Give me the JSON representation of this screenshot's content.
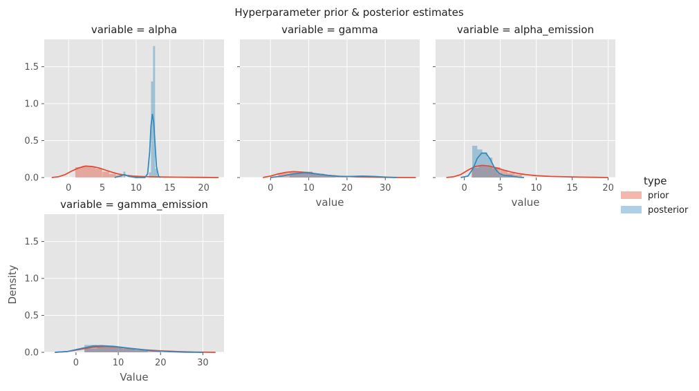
{
  "chart_data": {
    "type": "area",
    "title": "Hyperparameter prior & posterior estimates",
    "ylabel": "Density",
    "ylim": [
      0,
      1.87
    ],
    "yticks": [
      "0.0",
      "0.5",
      "1.0",
      "1.5"
    ],
    "grid": true,
    "legend": {
      "title": "type",
      "placement": "right",
      "entries": [
        {
          "name": "prior",
          "color": "#E24A33"
        },
        {
          "name": "posterior",
          "color": "#348ABD"
        }
      ]
    },
    "colors": {
      "prior": "#E24A33",
      "posterior": "#348ABD",
      "panel_bg": "#E5E5E5"
    },
    "panels": [
      {
        "title": "variable = alpha",
        "xlabel": "",
        "xlim": [
          -3.6,
          23
        ],
        "xticks": [
          0,
          5,
          10,
          15,
          20
        ],
        "histograms": [
          {
            "series": "prior",
            "bins": [
              [
                1,
                2,
                0.14
              ],
              [
                2,
                3,
                0.16
              ],
              [
                3,
                4,
                0.15
              ],
              [
                4,
                5,
                0.12
              ],
              [
                5,
                6,
                0.08
              ],
              [
                6,
                7,
                0.05
              ],
              [
                7,
                8,
                0.03
              ]
            ]
          },
          {
            "series": "posterior",
            "bins": [
              [
                8.1,
                8.4,
                0.08
              ],
              [
                11.9,
                12.2,
                0.07
              ],
              [
                12.2,
                12.5,
                1.3
              ],
              [
                12.5,
                12.8,
                1.78
              ],
              [
                12.8,
                13.1,
                0.12
              ]
            ]
          }
        ],
        "kde": [
          {
            "series": "prior",
            "points": [
              [
                -2.5,
                0.0
              ],
              [
                -1.5,
                0.01
              ],
              [
                -0.5,
                0.04
              ],
              [
                0.5,
                0.09
              ],
              [
                1.5,
                0.13
              ],
              [
                2.5,
                0.155
              ],
              [
                3.5,
                0.15
              ],
              [
                4.5,
                0.13
              ],
              [
                5.5,
                0.1
              ],
              [
                6.5,
                0.07
              ],
              [
                7.5,
                0.045
              ],
              [
                8.5,
                0.03
              ],
              [
                9.5,
                0.02
              ],
              [
                10.5,
                0.015
              ],
              [
                12,
                0.01
              ],
              [
                14,
                0.007
              ],
              [
                16,
                0.005
              ],
              [
                18,
                0.003
              ],
              [
                20,
                0.002
              ],
              [
                22.2,
                0.0
              ]
            ]
          },
          {
            "series": "posterior",
            "points": [
              [
                6.8,
                0.0
              ],
              [
                7.6,
                0.02
              ],
              [
                8.3,
                0.04
              ],
              [
                8.9,
                0.015
              ],
              [
                10,
                0.0
              ],
              [
                11.3,
                0.0
              ],
              [
                11.7,
                0.05
              ],
              [
                12.0,
                0.35
              ],
              [
                12.2,
                0.7
              ],
              [
                12.4,
                0.86
              ],
              [
                12.6,
                0.75
              ],
              [
                12.8,
                0.45
              ],
              [
                13.0,
                0.15
              ],
              [
                13.3,
                0.02
              ],
              [
                13.6,
                0.0
              ]
            ]
          }
        ]
      },
      {
        "title": "variable = gamma",
        "xlabel": "value",
        "xlim": [
          -8,
          39
        ],
        "xticks": [
          0,
          10,
          20,
          30
        ],
        "histograms": [
          {
            "series": "prior",
            "bins": [
              [
                2,
                5,
                0.06
              ],
              [
                5,
                8,
                0.08
              ],
              [
                8,
                11,
                0.075
              ],
              [
                11,
                14,
                0.05
              ],
              [
                14,
                17,
                0.03
              ],
              [
                17,
                20,
                0.02
              ]
            ]
          },
          {
            "series": "posterior",
            "bins": [
              [
                5,
                8,
                0.05
              ],
              [
                8,
                11,
                0.08
              ],
              [
                11,
                14,
                0.05
              ],
              [
                14,
                17,
                0.03
              ],
              [
                22,
                25,
                0.02
              ],
              [
                25,
                28,
                0.02
              ]
            ]
          }
        ],
        "kde": [
          {
            "series": "prior",
            "points": [
              [
                -2,
                0.0
              ],
              [
                0,
                0.02
              ],
              [
                2,
                0.05
              ],
              [
                4,
                0.07
              ],
              [
                6,
                0.08
              ],
              [
                8,
                0.075
              ],
              [
                10,
                0.065
              ],
              [
                12,
                0.05
              ],
              [
                15,
                0.03
              ],
              [
                18,
                0.018
              ],
              [
                22,
                0.01
              ],
              [
                26,
                0.006
              ],
              [
                30,
                0.003
              ],
              [
                34,
                0.001
              ],
              [
                38,
                0.0
              ]
            ]
          },
          {
            "series": "posterior",
            "points": [
              [
                0,
                0.0
              ],
              [
                3,
                0.02
              ],
              [
                6,
                0.05
              ],
              [
                9,
                0.065
              ],
              [
                12,
                0.05
              ],
              [
                15,
                0.03
              ],
              [
                18,
                0.015
              ],
              [
                21,
                0.015
              ],
              [
                24,
                0.02
              ],
              [
                27,
                0.015
              ],
              [
                31,
                0.004
              ],
              [
                33,
                0.0
              ]
            ]
          }
        ]
      },
      {
        "title": "variable = alpha_emission",
        "xlabel": "value",
        "xlim": [
          -4,
          21
        ],
        "xticks": [
          0,
          5,
          10,
          15,
          20
        ],
        "histograms": [
          {
            "series": "prior",
            "bins": [
              [
                1,
                2,
                0.13
              ],
              [
                2,
                3,
                0.16
              ],
              [
                3,
                4,
                0.15
              ],
              [
                4,
                5,
                0.14
              ],
              [
                5,
                6,
                0.1
              ],
              [
                6,
                7,
                0.06
              ],
              [
                7,
                8,
                0.04
              ]
            ]
          },
          {
            "series": "posterior",
            "bins": [
              [
                1.1,
                1.8,
                0.43
              ],
              [
                1.8,
                2.5,
                0.38
              ],
              [
                2.5,
                3.2,
                0.34
              ],
              [
                3.2,
                3.9,
                0.27
              ],
              [
                3.9,
                4.6,
                0.12
              ],
              [
                4.6,
                5.3,
                0.05
              ],
              [
                5.3,
                6.0,
                0.04
              ],
              [
                6.0,
                6.7,
                0.04
              ],
              [
                6.7,
                7.4,
                0.02
              ]
            ]
          }
        ],
        "kde": [
          {
            "series": "prior",
            "points": [
              [
                -2.5,
                0.0
              ],
              [
                -1.5,
                0.01
              ],
              [
                -0.5,
                0.04
              ],
              [
                0.5,
                0.1
              ],
              [
                1.5,
                0.15
              ],
              [
                2.5,
                0.165
              ],
              [
                3.5,
                0.155
              ],
              [
                4.5,
                0.13
              ],
              [
                5.5,
                0.1
              ],
              [
                6.5,
                0.075
              ],
              [
                7.5,
                0.055
              ],
              [
                8.5,
                0.04
              ],
              [
                10,
                0.025
              ],
              [
                12,
                0.015
              ],
              [
                14,
                0.01
              ],
              [
                16,
                0.006
              ],
              [
                18,
                0.003
              ],
              [
                20,
                0.0
              ]
            ]
          },
          {
            "series": "posterior",
            "points": [
              [
                -0.5,
                0.0
              ],
              [
                0.5,
                0.02
              ],
              [
                1.2,
                0.12
              ],
              [
                1.8,
                0.26
              ],
              [
                2.4,
                0.33
              ],
              [
                3.0,
                0.33
              ],
              [
                3.6,
                0.25
              ],
              [
                4.2,
                0.13
              ],
              [
                4.8,
                0.06
              ],
              [
                5.5,
                0.03
              ],
              [
                6.5,
                0.02
              ],
              [
                7.5,
                0.005
              ],
              [
                8.3,
                0.0
              ]
            ]
          }
        ]
      },
      {
        "title": "variable = gamma_emission",
        "xlabel": "Value",
        "xlim": [
          -7.5,
          35
        ],
        "xticks": [
          0,
          10,
          20,
          30
        ],
        "histograms": [
          {
            "series": "prior",
            "bins": [
              [
                2,
                5,
                0.05
              ],
              [
                5,
                8,
                0.08
              ],
              [
                8,
                11,
                0.075
              ],
              [
                11,
                14,
                0.05
              ],
              [
                14,
                17,
                0.03
              ],
              [
                17,
                20,
                0.02
              ]
            ]
          },
          {
            "series": "posterior",
            "bins": [
              [
                2,
                5,
                0.1
              ],
              [
                5,
                8,
                0.09
              ],
              [
                8,
                11,
                0.07
              ],
              [
                11,
                14,
                0.05
              ],
              [
                14,
                17,
                0.03
              ]
            ]
          }
        ],
        "kde": [
          {
            "series": "prior",
            "points": [
              [
                -5,
                0.0
              ],
              [
                -2,
                0.01
              ],
              [
                1,
                0.04
              ],
              [
                4,
                0.07
              ],
              [
                7,
                0.08
              ],
              [
                10,
                0.07
              ],
              [
                13,
                0.05
              ],
              [
                16,
                0.035
              ],
              [
                20,
                0.02
              ],
              [
                24,
                0.01
              ],
              [
                28,
                0.004
              ],
              [
                33,
                0.0
              ]
            ]
          },
          {
            "series": "posterior",
            "points": [
              [
                -5,
                0.0
              ],
              [
                -2,
                0.01
              ],
              [
                1,
                0.05
              ],
              [
                4,
                0.085
              ],
              [
                6,
                0.09
              ],
              [
                9,
                0.08
              ],
              [
                12,
                0.06
              ],
              [
                15,
                0.04
              ],
              [
                18,
                0.02
              ],
              [
                22,
                0.008
              ],
              [
                26,
                0.002
              ],
              [
                30,
                0.0
              ]
            ]
          }
        ]
      }
    ]
  }
}
